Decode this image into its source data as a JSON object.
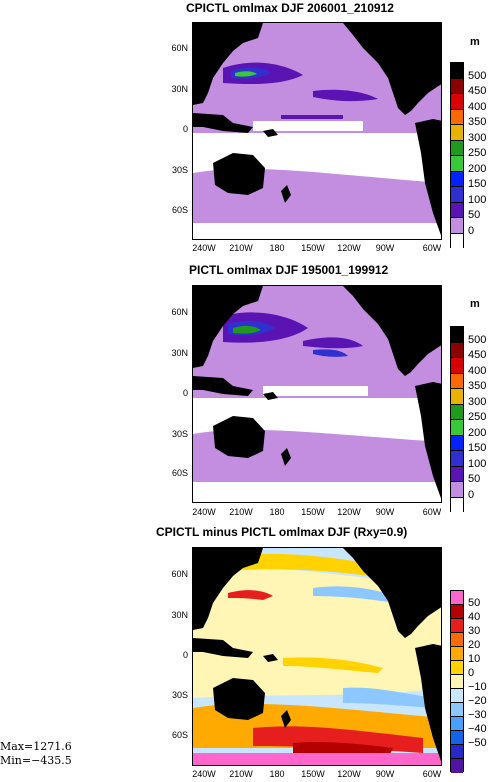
{
  "panels": [
    {
      "title": "CPICTL omlmax DJF 206001_210912",
      "unit": "m",
      "lat_ticks": [
        "60N",
        "30N",
        "0",
        "30S",
        "60S"
      ],
      "lon_ticks": [
        "240W",
        "210W",
        "180",
        "150W",
        "120W",
        "90W",
        "60W"
      ],
      "cbar_labels": [
        "500",
        "450",
        "400",
        "350",
        "300",
        "250",
        "200",
        "150",
        "100",
        "50",
        "0"
      ],
      "cbar_colors": [
        "#000000",
        "#8b0000",
        "#d90000",
        "#ff6a00",
        "#e8b200",
        "#1f9a1f",
        "#39c839",
        "#0022ff",
        "#3030d0",
        "#5a14b4",
        "#c38ee0",
        "#ffffff"
      ]
    },
    {
      "title": "PICTL omlmax DJF 195001_199912",
      "unit": "m",
      "lat_ticks": [
        "60N",
        "30N",
        "0",
        "30S",
        "60S"
      ],
      "lon_ticks": [
        "240W",
        "210W",
        "180",
        "150W",
        "120W",
        "90W",
        "60W"
      ],
      "cbar_labels": [
        "500",
        "450",
        "400",
        "350",
        "300",
        "250",
        "200",
        "150",
        "100",
        "50",
        "0"
      ],
      "cbar_colors": [
        "#000000",
        "#8b0000",
        "#d90000",
        "#ff6a00",
        "#e8b200",
        "#1f9a1f",
        "#39c839",
        "#0022ff",
        "#3030d0",
        "#5a14b4",
        "#c38ee0",
        "#ffffff"
      ]
    },
    {
      "title": "CPICTL minus PICTL omlmax DJF (Rxy=0.9)",
      "lat_ticks": [
        "60N",
        "30N",
        "0",
        "30S",
        "60S"
      ],
      "lon_ticks": [
        "240W",
        "210W",
        "180",
        "150W",
        "120W",
        "90W",
        "60W"
      ],
      "cbar_labels": [
        "50",
        "40",
        "30",
        "20",
        "10",
        "0",
        "−10",
        "−20",
        "−30",
        "−40",
        "−50"
      ],
      "cbar_colors": [
        "#ff66cc",
        "#b40000",
        "#e61e1e",
        "#ff6a00",
        "#ffaa00",
        "#ffd200",
        "#fff5b4",
        "#c8e6ff",
        "#8cc8ff",
        "#4ba0ff",
        "#1464e6",
        "#2828c8",
        "#5014a0"
      ]
    }
  ],
  "stats": {
    "max": "Max=1271.6",
    "min": "Min=−435.5"
  }
}
